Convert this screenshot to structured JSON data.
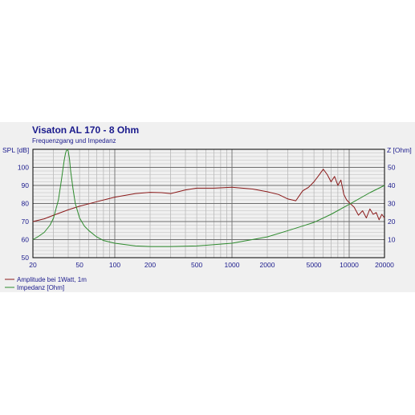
{
  "chart_data": {
    "type": "line",
    "title": "Visaton AL 170 - 8 Ohm",
    "subtitle": "Frequenzgang und Impedanz",
    "x_scale": "log",
    "xlim": [
      20,
      20000
    ],
    "x_ticks": [
      20,
      50,
      100,
      200,
      500,
      1000,
      2000,
      5000,
      10000,
      20000
    ],
    "x_tick_labels": [
      "20",
      "50",
      "100",
      "200",
      "500",
      "1000",
      "2000",
      "5000",
      "10000",
      "20000"
    ],
    "y_left": {
      "label": "SPL [dB]",
      "lim": [
        50,
        110
      ],
      "ticks": [
        50,
        60,
        70,
        80,
        90,
        100
      ],
      "tick_labels": [
        "50",
        "60",
        "70",
        "80",
        "90",
        "100"
      ]
    },
    "y_right": {
      "label": "Z [Ohm]",
      "lim": [
        0,
        60
      ],
      "ticks": [
        10,
        20,
        30,
        40,
        50
      ],
      "tick_labels": [
        "10",
        "20",
        "30",
        "40",
        "50"
      ]
    },
    "grid": true,
    "legend_position": "bottom-left",
    "series": [
      {
        "name": "Amplitude bei 1Watt, 1m",
        "axis": "left",
        "color": "#8b1a1a",
        "x": [
          20,
          25,
          30,
          40,
          50,
          70,
          100,
          150,
          200,
          250,
          300,
          400,
          500,
          700,
          1000,
          1500,
          2000,
          2500,
          3000,
          3500,
          4000,
          4500,
          5000,
          5500,
          6000,
          6500,
          7000,
          7500,
          8000,
          8500,
          9000,
          9500,
          10000,
          11000,
          12000,
          13000,
          14000,
          15000,
          16000,
          17000,
          18000,
          19000,
          20000
        ],
        "values": [
          70,
          71.5,
          73.5,
          76.5,
          78.5,
          81,
          83.5,
          85.5,
          86.2,
          86,
          85.5,
          87.5,
          88.5,
          88.5,
          89,
          88,
          86.5,
          85,
          82.5,
          81.5,
          87,
          89,
          92,
          95.5,
          99,
          96,
          92,
          95,
          90,
          93,
          85,
          82,
          80.5,
          78,
          73.5,
          76,
          72,
          77,
          74,
          75,
          71,
          74,
          72
        ]
      },
      {
        "name": "Impedanz [Ohm]",
        "axis": "right",
        "color": "#2e8b2e",
        "x": [
          20,
          22,
          25,
          28,
          30,
          33,
          35,
          37,
          38,
          39,
          40,
          41,
          42,
          44,
          46,
          50,
          55,
          60,
          70,
          80,
          100,
          150,
          200,
          300,
          500,
          1000,
          2000,
          3000,
          5000,
          7000,
          10000,
          15000,
          20000
        ],
        "values": [
          10,
          11.5,
          14,
          18,
          22,
          32,
          43,
          54,
          58,
          60,
          59,
          55,
          48,
          38,
          30,
          22,
          17.5,
          15,
          11.5,
          9.5,
          8,
          6.5,
          6.2,
          6.2,
          6.5,
          8,
          11.5,
          15,
          19.5,
          24,
          29.5,
          36,
          40
        ]
      }
    ]
  }
}
